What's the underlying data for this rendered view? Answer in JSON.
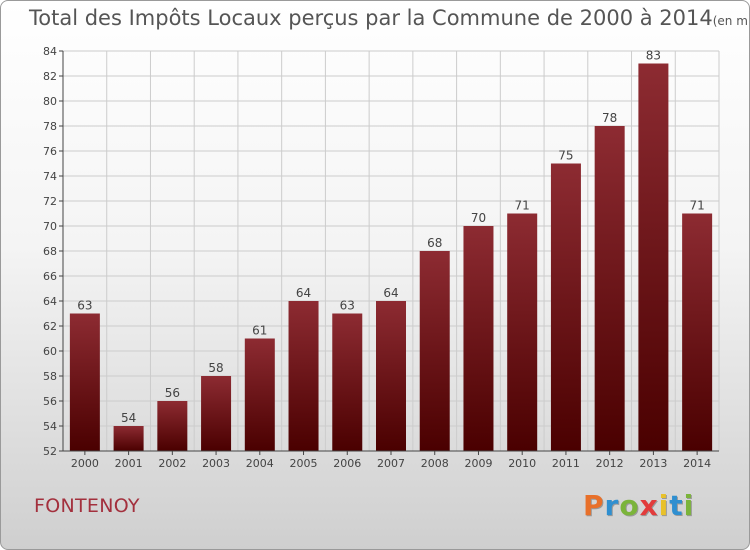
{
  "header": {
    "title": "Total des Impôts Locaux perçus par la Commune de 2000 à 2014",
    "unit": "(en milliers d'€)"
  },
  "footer": {
    "commune": "FONTENOY",
    "brand": "Proxiti",
    "brand_colors": [
      "#e8702a",
      "#2f8fd0",
      "#7bb43a",
      "#e23b3b",
      "#e8c12a",
      "#2f8fd0",
      "#7bb43a"
    ]
  },
  "colors": {
    "bar_top": "#8d2b32",
    "bar_bottom": "#4a0000",
    "axis": "#444444",
    "grid": "#cccccc",
    "title": "#555555",
    "commune": "#a3303d"
  },
  "chart_data": {
    "type": "bar",
    "title": "Total des Impôts Locaux perçus par la Commune de 2000 à 2014",
    "ylabel": "",
    "xlabel": "",
    "categories": [
      "2000",
      "2001",
      "2002",
      "2003",
      "2004",
      "2005",
      "2006",
      "2007",
      "2008",
      "2009",
      "2010",
      "2011",
      "2012",
      "2013",
      "2014"
    ],
    "values": [
      63,
      54,
      56,
      58,
      61,
      64,
      63,
      64,
      68,
      70,
      71,
      75,
      78,
      83,
      71
    ],
    "ylim": [
      52,
      84
    ],
    "yticks": [
      52,
      54,
      56,
      58,
      60,
      62,
      64,
      66,
      68,
      70,
      72,
      74,
      76,
      78,
      80,
      82,
      84
    ],
    "grid": true
  }
}
